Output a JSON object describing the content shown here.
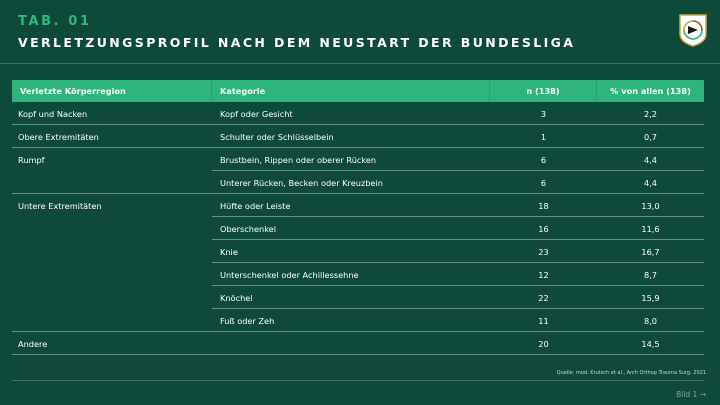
{
  "header": {
    "tab_label": "TAB. 01",
    "title": "VERLETZUNGSPROFIL NACH DEM NEUSTART DER BUNDESLIGA"
  },
  "logo": {
    "icon": "dfb-eagle-emblem-icon"
  },
  "table": {
    "columns": [
      "Verletzte Körperregion",
      "Kategorie",
      "n (138)",
      "% von allen (138)"
    ],
    "rows": [
      {
        "region": "Kopf und Nacken",
        "category": "Kopf oder Gesicht",
        "n": "3",
        "pct": "2,2"
      },
      {
        "region": "Obere Extremitäten",
        "category": "Schulter oder Schlüsselbein",
        "n": "1",
        "pct": "0,7"
      },
      {
        "region": "Rumpf",
        "category": "Brustbein, Rippen oder oberer Rücken",
        "n": "6",
        "pct": "4,4"
      },
      {
        "region": "",
        "category": "Unterer Rücken, Becken oder Kreuzbein",
        "n": "6",
        "pct": "4,4"
      },
      {
        "region": "Untere Extremitäten",
        "category": "Hüfte oder Leiste",
        "n": "18",
        "pct": "13,0"
      },
      {
        "region": "",
        "category": "Oberschenkel",
        "n": "16",
        "pct": "11,6"
      },
      {
        "region": "",
        "category": "Knie",
        "n": "23",
        "pct": "16,7"
      },
      {
        "region": "",
        "category": "Unterschenkel oder Achillessehne",
        "n": "12",
        "pct": "8,7"
      },
      {
        "region": "",
        "category": "Knöchel",
        "n": "22",
        "pct": "15,9"
      },
      {
        "region": "",
        "category": "Fuß oder Zeh",
        "n": "11",
        "pct": "8,0"
      },
      {
        "region": "Andere",
        "category": "",
        "n": "20",
        "pct": "14,5"
      }
    ]
  },
  "source": "Quelle: mod. Krutsch et al., Arch Orthop Trauma Surg. 2021",
  "footer": "Bild 1 →",
  "colors": {
    "background": "#0e4a39",
    "accent": "#2db57c",
    "tab_label": "#2fb87e"
  }
}
